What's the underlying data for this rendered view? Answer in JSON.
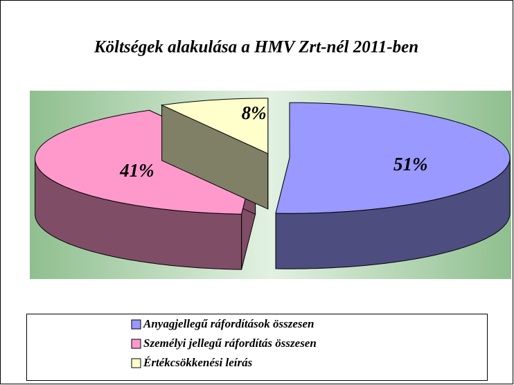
{
  "chart_data": {
    "type": "pie",
    "title": "Költségek alakulása a HMV Zrt-nél 2011-ben",
    "categories": [
      "Anyagjellegű ráfordítások összesen",
      "Személyi jellegű ráfordítás összesen",
      "Értékcsökkenési leírás"
    ],
    "values": [
      51,
      41,
      8
    ],
    "value_labels": [
      "51%",
      "41%",
      "8%"
    ],
    "colors": [
      "#9999ff",
      "#ff99cc",
      "#ffffcc"
    ]
  }
}
